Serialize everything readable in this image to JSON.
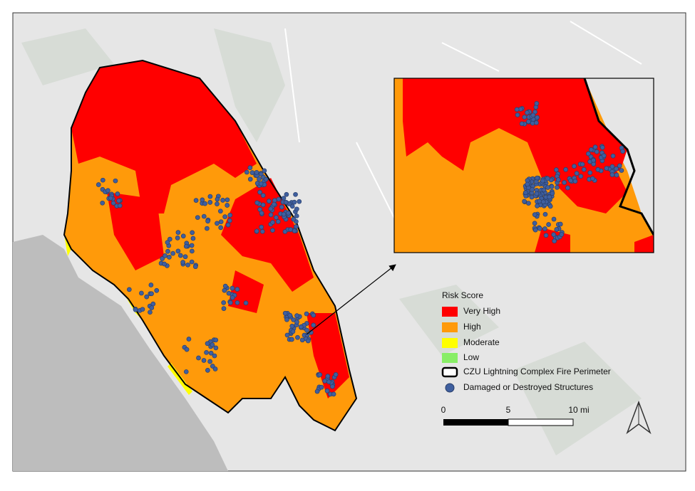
{
  "legend": {
    "title": "Risk Score",
    "items": [
      {
        "label": "Very High"
      },
      {
        "label": "High"
      },
      {
        "label": "Moderate"
      },
      {
        "label": "Low"
      },
      {
        "label": "CZU Lightning Complex Fire Perimeter"
      },
      {
        "label": "Damaged or Destroyed Structures"
      }
    ]
  },
  "scale_bar": {
    "labels": [
      "0",
      "5",
      "10 mi"
    ]
  }
}
